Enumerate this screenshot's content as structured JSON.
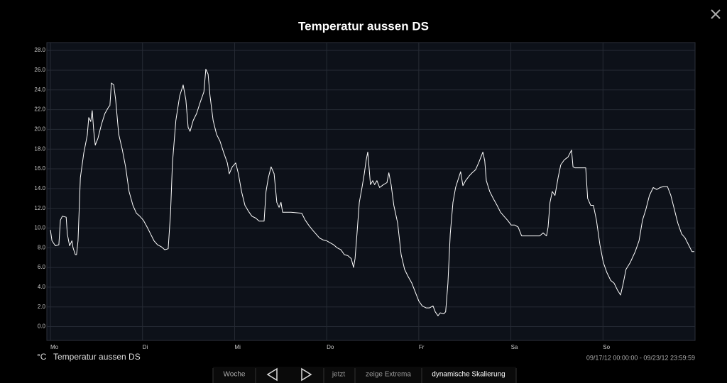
{
  "chart_data": {
    "type": "line",
    "title": "Temperatur aussen DS",
    "unit": "°C",
    "x": [
      0,
      0.4,
      1.3,
      2.2,
      2.6,
      3.1,
      4.1,
      4.4,
      5.0,
      5.6,
      5.9,
      6.5,
      6.8,
      7.2,
      7.8,
      8.7,
      9.6,
      10.0,
      10.5,
      10.9,
      11.3,
      11.7,
      12.4,
      13.3,
      14.2,
      15.2,
      15.5,
      15.9,
      16.5,
      17.0,
      17.8,
      18.7,
      19.6,
      20.5,
      21.5,
      22.4,
      23.3,
      24.2,
      25.2,
      26.1,
      27.0,
      27.9,
      28.9,
      29.8,
      30.7,
      31.3,
      31.8,
      32.7,
      33.7,
      34.6,
      35.3,
      35.9,
      36.4,
      37.2,
      38.1,
      39.0,
      40.0,
      40.5,
      41.1,
      41.6,
      42.4,
      43.3,
      44.2,
      45.1,
      46.1,
      46.6,
      47.4,
      48.3,
      49.0,
      49.8,
      50.7,
      51.6,
      52.5,
      53.5,
      54.4,
      54.9,
      55.7,
      56.2,
      56.8,
      57.5,
      58.3,
      59.0,
      59.6,
      60.1,
      60.5,
      62.7,
      65.5,
      66.4,
      67.3,
      68.3,
      69.2,
      70.1,
      71.0,
      72.0,
      72.9,
      73.8,
      74.7,
      75.7,
      76.6,
      77.5,
      78.4,
      79.0,
      79.4,
      79.9,
      80.5,
      81.2,
      81.8,
      82.3,
      82.7,
      83.1,
      83.4,
      84.0,
      84.5,
      85.1,
      85.8,
      86.8,
      87.7,
      88.2,
      88.8,
      89.5,
      90.5,
      91.4,
      92.3,
      93.2,
      94.2,
      95.1,
      96.0,
      96.9,
      97.9,
      98.8,
      99.7,
      100.3,
      101.0,
      101.6,
      102.5,
      103.0,
      103.6,
      104.2,
      104.9,
      105.6,
      106.4,
      106.9,
      107.5,
      108.2,
      109.2,
      109.9,
      110.8,
      111.7,
      112.7,
      113.2,
      113.6,
      114.5,
      115.4,
      116.4,
      117.3,
      118.2,
      119.1,
      120.1,
      121.0,
      121.9,
      122.8,
      125.6,
      127.5,
      128.4,
      129.3,
      129.7,
      130.2,
      130.8,
      131.5,
      132.3,
      133.0,
      133.9,
      134.9,
      135.8,
      136.2,
      136.7,
      139.5,
      140.0,
      140.8,
      141.5,
      142.3,
      143.2,
      144.1,
      145.0,
      146.0,
      146.9,
      147.8,
      148.6,
      149.3,
      150.0,
      151.1,
      152.4,
      153.4,
      154.3,
      155.2,
      156.1,
      157.1,
      158.0,
      158.9,
      159.8,
      160.8,
      161.7,
      162.6,
      163.5,
      164.5,
      165.4,
      166.3,
      167.2,
      167.8
    ],
    "series": [
      {
        "name": "Temperatur aussen DS",
        "color": "#ffffff",
        "values": [
          9.8,
          8.7,
          8.2,
          8.3,
          10.8,
          11.2,
          11.1,
          9.4,
          8.2,
          8.7,
          8.0,
          7.3,
          7.3,
          8.7,
          15.1,
          17.6,
          19.4,
          21.2,
          20.8,
          21.9,
          19.8,
          18.4,
          19.1,
          20.5,
          21.6,
          22.3,
          22.4,
          24.7,
          24.5,
          23.0,
          19.5,
          18.0,
          16.2,
          13.7,
          12.3,
          11.5,
          11.2,
          10.8,
          10.1,
          9.4,
          8.7,
          8.3,
          8.1,
          7.8,
          7.9,
          11.5,
          16.6,
          20.9,
          23.4,
          24.5,
          23.0,
          20.2,
          19.8,
          20.9,
          21.6,
          22.7,
          23.8,
          26.1,
          25.6,
          23.4,
          20.9,
          19.5,
          18.8,
          17.7,
          16.6,
          15.5,
          16.2,
          16.6,
          15.5,
          13.7,
          12.3,
          11.7,
          11.2,
          11.0,
          10.7,
          10.7,
          10.7,
          13.7,
          15.1,
          16.2,
          15.5,
          12.6,
          12.1,
          12.6,
          11.6,
          11.6,
          11.5,
          10.8,
          10.3,
          9.8,
          9.4,
          9.0,
          8.8,
          8.7,
          8.5,
          8.3,
          8.0,
          7.8,
          7.3,
          7.2,
          6.9,
          6.0,
          6.9,
          9.4,
          12.6,
          14.1,
          15.5,
          16.9,
          17.7,
          15.9,
          14.4,
          14.8,
          14.4,
          14.8,
          14.1,
          14.4,
          14.6,
          15.6,
          14.4,
          12.3,
          10.5,
          7.3,
          5.8,
          5.1,
          4.4,
          3.5,
          2.6,
          2.1,
          1.9,
          1.9,
          2.1,
          1.5,
          1.1,
          1.4,
          1.3,
          1.5,
          4.4,
          9.4,
          12.6,
          14.1,
          15.1,
          15.7,
          14.3,
          14.8,
          15.3,
          15.6,
          15.9,
          16.7,
          17.7,
          16.8,
          14.8,
          13.7,
          13.0,
          12.3,
          11.6,
          11.2,
          10.8,
          10.3,
          10.3,
          10.1,
          9.2,
          9.2,
          9.2,
          9.5,
          9.2,
          10.1,
          12.6,
          13.7,
          13.3,
          15.1,
          16.4,
          16.9,
          17.2,
          17.9,
          16.2,
          16.1,
          16.1,
          13.0,
          12.3,
          12.3,
          10.8,
          8.3,
          6.5,
          5.5,
          4.7,
          4.4,
          3.7,
          3.2,
          4.4,
          5.8,
          6.5,
          7.6,
          8.7,
          10.8,
          11.9,
          13.3,
          14.1,
          13.9,
          14.1,
          14.2,
          14.2,
          13.3,
          11.9,
          10.5,
          9.4,
          9.0,
          8.3,
          7.6,
          7.6
        ]
      }
    ],
    "xlim": [
      0,
      168
    ],
    "xticks": [
      {
        "value": 0,
        "label": "Mo"
      },
      {
        "value": 24,
        "label": "Di"
      },
      {
        "value": 48,
        "label": "Mi"
      },
      {
        "value": 72,
        "label": "Do"
      },
      {
        "value": 96,
        "label": "Fr"
      },
      {
        "value": 120,
        "label": "Sa"
      },
      {
        "value": 144,
        "label": "So"
      }
    ],
    "ylim": [
      -1.4,
      28.8
    ],
    "yticks": [
      {
        "value": 0,
        "label": "0.0"
      },
      {
        "value": 2,
        "label": "2.0"
      },
      {
        "value": 4,
        "label": "4.0"
      },
      {
        "value": 6,
        "label": "6.0"
      },
      {
        "value": 8,
        "label": "8.0"
      },
      {
        "value": 10,
        "label": "10.0"
      },
      {
        "value": 12,
        "label": "12.0"
      },
      {
        "value": 14,
        "label": "14.0"
      },
      {
        "value": 16,
        "label": "16.0"
      },
      {
        "value": 18,
        "label": "18.0"
      },
      {
        "value": 20,
        "label": "20.0"
      },
      {
        "value": 22,
        "label": "22.0"
      },
      {
        "value": 24,
        "label": "24.0"
      },
      {
        "value": 26,
        "label": "26.0"
      },
      {
        "value": 28,
        "label": "28.0"
      }
    ],
    "grid": true
  },
  "date_range": "09/17/12 00:00:00 - 09/23/12 23:59:59",
  "toolbar": {
    "week": "Woche",
    "now": "jetzt",
    "extrema": "zeige Extrema",
    "scaling": "dynamische Skalierung"
  }
}
